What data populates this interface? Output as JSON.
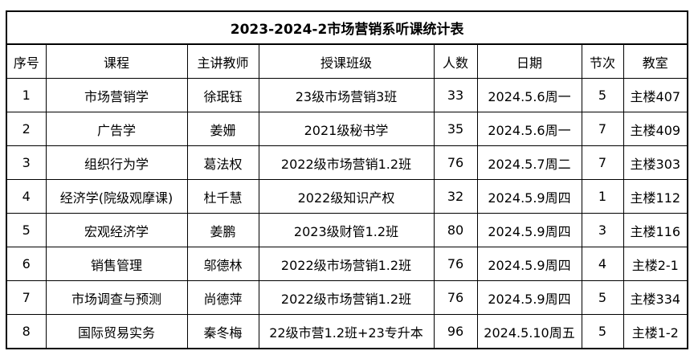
{
  "table": {
    "title": "2023-2024-2市场营销系听课统计表",
    "columns": [
      "序号",
      "课程",
      "主讲教师",
      "授课班级",
      "人数",
      "日期",
      "节次",
      "教室"
    ],
    "rows": [
      [
        "1",
        "市场营销学",
        "徐珉钰",
        "23级市场营销3班",
        "33",
        "2024.5.6周一",
        "5",
        "主楼407"
      ],
      [
        "2",
        "广告学",
        "姜姗",
        "2021级秘书学",
        "35",
        "2024.5.6周一",
        "7",
        "主楼409"
      ],
      [
        "3",
        "组织行为学",
        "葛法权",
        "2022级市场营销1.2班",
        "76",
        "2024.5.7周二",
        "7",
        "主楼303"
      ],
      [
        "4",
        "经济学(院级观摩课)",
        "杜千慧",
        "2022级知识产权",
        "32",
        "2024.5.9周四",
        "1",
        "主楼112"
      ],
      [
        "5",
        "宏观经济学",
        "姜鹏",
        "2023级财管1.2班",
        "80",
        "2024.5.9周四",
        "3",
        "主楼116"
      ],
      [
        "6",
        "销售管理",
        "邬德林",
        "2022级市场营销1.2班",
        "76",
        "2024.5.9周四",
        "4",
        "主楼2-1"
      ],
      [
        "7",
        "市场调查与预测",
        "尚德萍",
        "2022级市场营销1.2班",
        "76",
        "2024.5.9周四",
        "5",
        "主楼334"
      ],
      [
        "8",
        "国际贸易实务",
        "秦冬梅",
        "22级市营1.2班+23专升本",
        "96",
        "2024.5.10周五",
        "5",
        "主楼1-2"
      ]
    ],
    "colors": {
      "border": "#000000",
      "background": "#ffffff",
      "text": "#000000"
    }
  }
}
